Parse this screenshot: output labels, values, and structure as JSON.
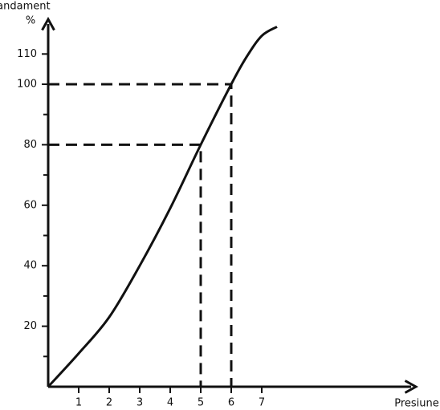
{
  "chart_data": {
    "type": "line",
    "y_label": "Randament",
    "y_unit": "%",
    "x_label": "Presiune",
    "x": [
      0,
      1,
      2,
      3,
      4,
      5,
      6,
      6.5,
      7,
      7.5
    ],
    "series": [
      {
        "color": "#111111",
        "values": [
          0,
          11,
          23,
          40,
          59,
          80,
          100,
          109,
          116,
          119
        ]
      }
    ],
    "xlim": [
      0,
      12
    ],
    "ylim": [
      0,
      120
    ],
    "xticks": [
      1,
      2,
      3,
      4,
      5,
      6,
      7
    ],
    "yticks": [
      20,
      40,
      60,
      80,
      100,
      110
    ],
    "yminor": [
      10,
      30,
      50,
      70,
      90
    ],
    "guides": [
      {
        "x": 5,
        "y": 80
      },
      {
        "x": 6,
        "y": 100
      }
    ]
  }
}
